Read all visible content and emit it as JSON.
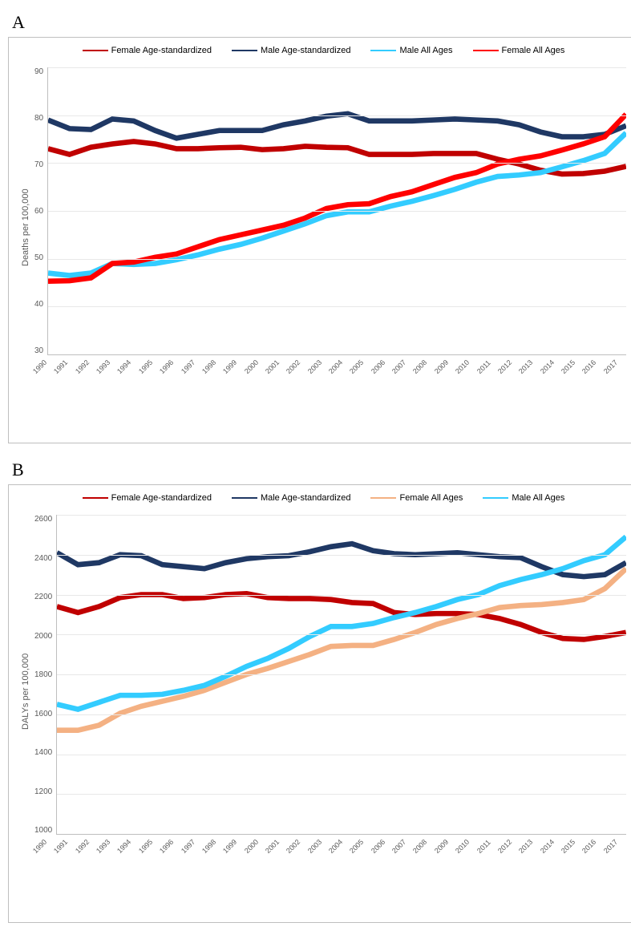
{
  "panelA": {
    "label": "A",
    "type": "line",
    "ylabel": "Deaths per 100,000",
    "ylim": [
      30,
      90
    ],
    "ytick_step": 10,
    "yticks": [
      30,
      40,
      50,
      60,
      70,
      80,
      90
    ],
    "xcategories": [
      "1990",
      "1991",
      "1992",
      "1993",
      "1994",
      "1995",
      "1996",
      "1997",
      "1998",
      "1999",
      "2000",
      "2001",
      "2002",
      "2003",
      "2004",
      "2005",
      "2006",
      "2007",
      "2008",
      "2009",
      "2010",
      "2011",
      "2012",
      "2013",
      "2014",
      "2015",
      "2016",
      "2017"
    ],
    "background_color": "#ffffff",
    "grid_color": "#e8e8e8",
    "border_color": "#bfbfbf",
    "label_fontsize": 11,
    "legend": [
      {
        "label": "Female Age-standardized",
        "color": "#c00000"
      },
      {
        "label": "Male Age-standardized",
        "color": "#1f3864"
      },
      {
        "label": "Male All Ages",
        "color": "#33ccff"
      },
      {
        "label": "Female All Ages",
        "color": "#ff0000"
      }
    ],
    "series": [
      {
        "name": "Female Age-standardized",
        "color": "#c00000",
        "width": 2.2,
        "values": [
          73,
          71.8,
          73.3,
          74,
          74.5,
          74,
          73,
          73,
          73.2,
          73.3,
          72.8,
          73,
          73.5,
          73.3,
          73.2,
          71.8,
          71.8,
          71.8,
          72,
          72,
          72,
          70.8,
          69.8,
          68.5,
          67.7,
          67.8,
          68.3,
          69.3
        ]
      },
      {
        "name": "Male Age-standardized",
        "color": "#1f3864",
        "width": 2.2,
        "values": [
          79,
          77.2,
          77,
          79.2,
          78.8,
          76.8,
          75.2,
          76,
          76.8,
          76.8,
          76.8,
          78,
          78.8,
          79.8,
          80.3,
          78.8,
          78.8,
          78.8,
          79,
          79.2,
          79,
          78.8,
          78,
          76.5,
          75.5,
          75.5,
          76,
          77.8
        ]
      },
      {
        "name": "Male All Ages",
        "color": "#33ccff",
        "width": 2.2,
        "values": [
          47,
          46.5,
          47,
          49,
          48.8,
          49,
          49.8,
          50.8,
          52,
          53,
          54.3,
          55.8,
          57.3,
          59,
          59.8,
          59.8,
          61,
          62,
          63.2,
          64.5,
          66,
          67.2,
          67.5,
          68,
          69.2,
          70.5,
          72,
          76.3
        ]
      },
      {
        "name": "Female All Ages",
        "color": "#ff0000",
        "width": 2.2,
        "values": [
          45.3,
          45.4,
          46,
          49,
          49.3,
          50.3,
          51,
          52.5,
          54,
          55,
          56,
          57,
          58.5,
          60.5,
          61.3,
          61.5,
          63,
          64,
          65.5,
          67,
          68,
          69.8,
          70.8,
          71.5,
          72.7,
          74,
          75.5,
          80.2
        ]
      }
    ]
  },
  "panelB": {
    "label": "B",
    "type": "line",
    "ylabel": "DALYs per 100,000",
    "ylim": [
      1000,
      2600
    ],
    "ytick_step": 200,
    "yticks": [
      1000,
      1200,
      1400,
      1600,
      1800,
      2000,
      2200,
      2400,
      2600
    ],
    "xcategories": [
      "1990",
      "1991",
      "1992",
      "1993",
      "1994",
      "1995",
      "1996",
      "1997",
      "1998",
      "1999",
      "2000",
      "2001",
      "2002",
      "2003",
      "2004",
      "2005",
      "2006",
      "2007",
      "2008",
      "2009",
      "2010",
      "2011",
      "2012",
      "2013",
      "2014",
      "2015",
      "2016",
      "2017"
    ],
    "background_color": "#ffffff",
    "grid_color": "#e8e8e8",
    "border_color": "#bfbfbf",
    "label_fontsize": 11,
    "legend": [
      {
        "label": "Female Age-standardized",
        "color": "#c00000"
      },
      {
        "label": "Male Age-standardized",
        "color": "#1f3864"
      },
      {
        "label": "Female All Ages",
        "color": "#f4b183"
      },
      {
        "label": "Male All Ages",
        "color": "#33ccff"
      }
    ],
    "series": [
      {
        "name": "Female Age-standardized",
        "color": "#c00000",
        "width": 2.2,
        "values": [
          2140,
          2110,
          2140,
          2185,
          2200,
          2200,
          2180,
          2185,
          2200,
          2205,
          2185,
          2180,
          2180,
          2175,
          2160,
          2155,
          2110,
          2100,
          2105,
          2105,
          2100,
          2080,
          2050,
          2010,
          1980,
          1975,
          1990,
          2010
        ]
      },
      {
        "name": "Male Age-standardized",
        "color": "#1f3864",
        "width": 2.2,
        "values": [
          2410,
          2350,
          2360,
          2400,
          2395,
          2350,
          2340,
          2330,
          2360,
          2380,
          2390,
          2395,
          2415,
          2440,
          2455,
          2420,
          2405,
          2400,
          2405,
          2410,
          2400,
          2390,
          2385,
          2340,
          2300,
          2290,
          2300,
          2360
        ]
      },
      {
        "name": "Female All Ages",
        "color": "#f4b183",
        "width": 2.2,
        "values": [
          1520,
          1520,
          1545,
          1605,
          1640,
          1665,
          1690,
          1720,
          1760,
          1800,
          1830,
          1865,
          1900,
          1940,
          1945,
          1945,
          1975,
          2010,
          2050,
          2080,
          2105,
          2135,
          2145,
          2150,
          2160,
          2175,
          2230,
          2330
        ]
      },
      {
        "name": "Male All Ages",
        "color": "#33ccff",
        "width": 2.2,
        "values": [
          1650,
          1625,
          1660,
          1695,
          1695,
          1700,
          1720,
          1745,
          1790,
          1840,
          1880,
          1930,
          1990,
          2040,
          2040,
          2055,
          2085,
          2110,
          2140,
          2175,
          2200,
          2245,
          2275,
          2300,
          2330,
          2370,
          2400,
          2490
        ]
      }
    ]
  }
}
